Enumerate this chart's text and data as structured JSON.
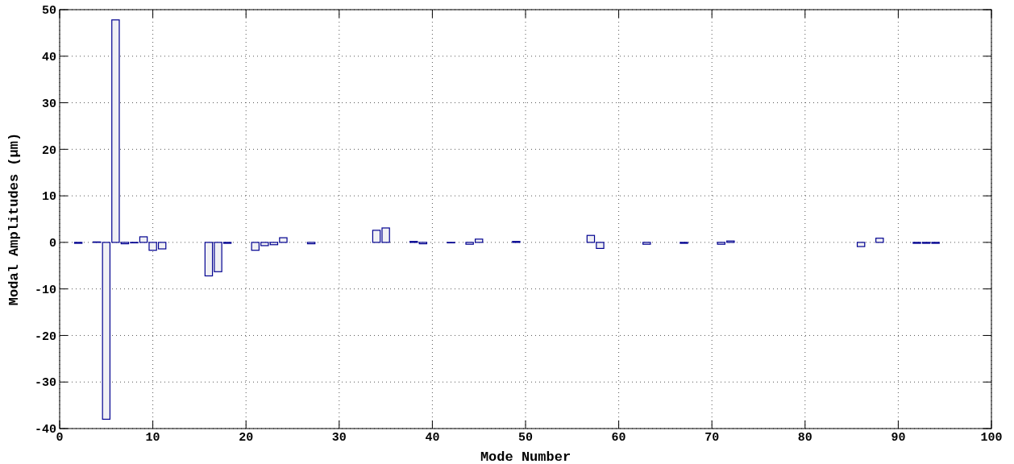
{
  "chart_data": {
    "type": "bar",
    "xlabel": "Mode Number",
    "ylabel": "Modal Amplitudes (μm)",
    "x": [
      1,
      2,
      3,
      4,
      5,
      6,
      7,
      8,
      9,
      10,
      11,
      12,
      13,
      14,
      15,
      16,
      17,
      18,
      19,
      20,
      21,
      22,
      23,
      24,
      25,
      26,
      27,
      28,
      29,
      30,
      31,
      32,
      33,
      34,
      35,
      36,
      37,
      38,
      39,
      40,
      41,
      42,
      43,
      44,
      45,
      46,
      47,
      48,
      49,
      50,
      51,
      52,
      53,
      54,
      55,
      56,
      57,
      58,
      59,
      60,
      61,
      62,
      63,
      64,
      65,
      66,
      67,
      68,
      69,
      70,
      71,
      72,
      73,
      74,
      75,
      76,
      77,
      78,
      79,
      80,
      81,
      82,
      83,
      84,
      85,
      86,
      87,
      88,
      89,
      90,
      91,
      92,
      93,
      94,
      95,
      96,
      97,
      98,
      99,
      100
    ],
    "series": [
      {
        "color": "#f0f0f4",
        "values": [
          0,
          -0.2,
          0,
          0.1,
          -38,
          47.8,
          -0.3,
          -0.1,
          1.2,
          -1.7,
          -1.4,
          0,
          0,
          0,
          0,
          -7.2,
          -6.3,
          -0.2,
          0,
          0,
          -1.7,
          -0.7,
          -0.5,
          1.0,
          0,
          0,
          -0.3,
          0,
          0,
          0,
          0,
          0,
          0,
          2.6,
          3.1,
          0,
          0,
          0.2,
          -0.3,
          0,
          0,
          -0.1,
          0,
          -0.4,
          0.7,
          0,
          0,
          0,
          0.2,
          0,
          0,
          0,
          0,
          0,
          0,
          0,
          1.5,
          -1.3,
          0,
          0,
          0,
          0,
          -0.4,
          0,
          0,
          0,
          -0.2,
          0,
          0,
          0,
          -0.4,
          0.3,
          0,
          0,
          0,
          0,
          0,
          0,
          0,
          0,
          0,
          0,
          0,
          0,
          0,
          -0.9,
          0,
          0.9,
          0,
          0,
          0,
          -0.2,
          -0.2,
          -0.2,
          0,
          0,
          0,
          0,
          0,
          0
        ]
      }
    ],
    "xlim": [
      0,
      100
    ],
    "xticks": [
      0,
      10,
      20,
      30,
      40,
      50,
      60,
      70,
      80,
      90,
      100
    ],
    "ylim": [
      -40,
      50
    ],
    "yticks": [
      -40,
      -30,
      -20,
      -10,
      0,
      10,
      20,
      30,
      40,
      50
    ],
    "grid": true
  }
}
